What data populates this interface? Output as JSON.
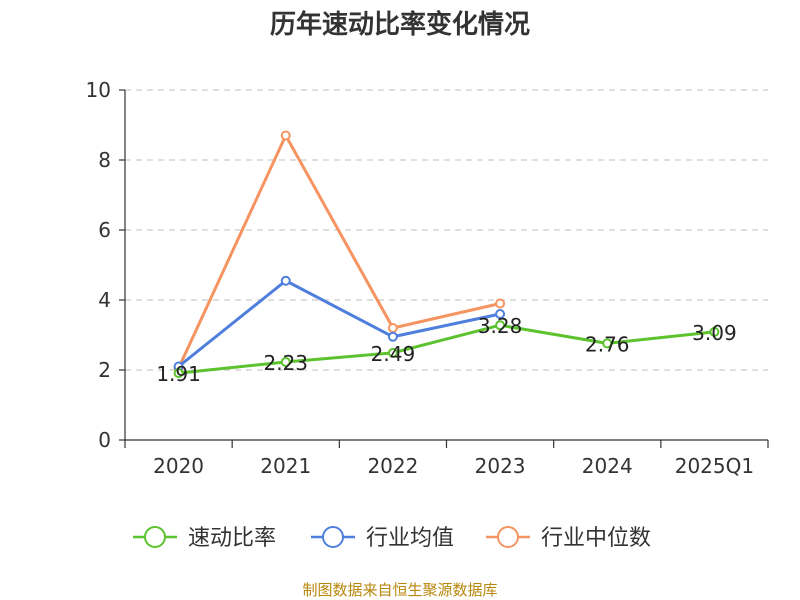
{
  "title": "历年速动比率变化情况",
  "source": "制图数据来自恒生聚源数据库",
  "chart_data": {
    "type": "line",
    "title": "历年速动比率变化情况",
    "categories": [
      "2020",
      "2021",
      "2022",
      "2023",
      "2024",
      "2025Q1"
    ],
    "ylim": [
      0,
      10
    ],
    "yticks": [
      0,
      2,
      4,
      6,
      8,
      10
    ],
    "grid": true,
    "legend_position": "bottom",
    "series": [
      {
        "name": "速动比率",
        "color": "#5cc22e",
        "values": [
          1.91,
          2.23,
          2.49,
          3.28,
          2.76,
          3.09
        ],
        "labels": [
          "1.91",
          "2.23",
          "2.49",
          "3.28",
          "2.76",
          "3.09"
        ],
        "show_labels": true
      },
      {
        "name": "行业均值",
        "color": "#4f7fdd",
        "values": [
          2.1,
          4.55,
          2.95,
          3.6,
          null,
          null
        ],
        "show_labels": false
      },
      {
        "name": "行业中位数",
        "color": "#f59461",
        "values": [
          2.05,
          8.7,
          3.2,
          3.9,
          null,
          null
        ],
        "show_labels": false
      }
    ]
  }
}
